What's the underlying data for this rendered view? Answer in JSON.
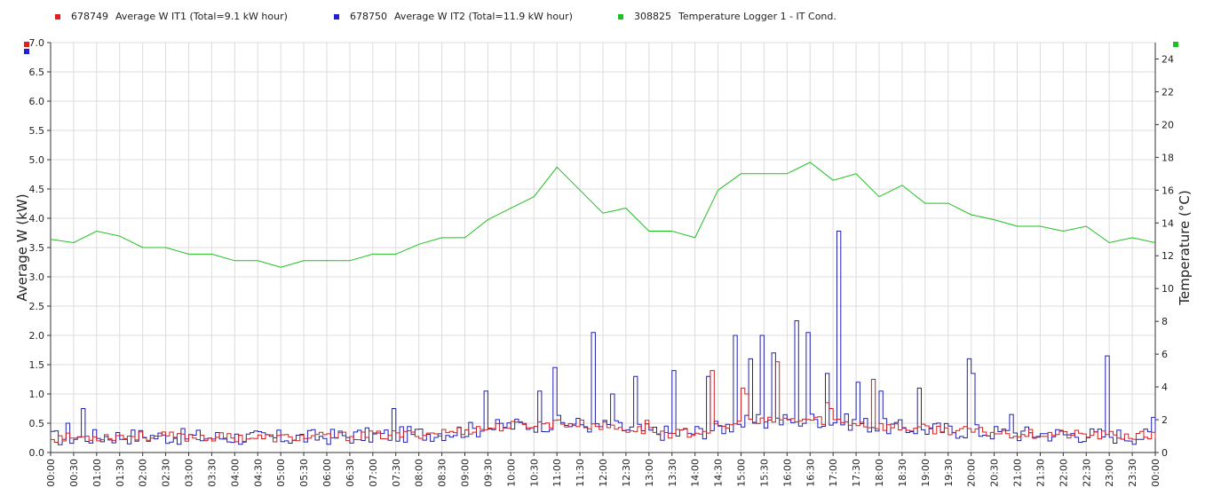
{
  "legend": [
    {
      "id": "678749",
      "label": "Average W IT1 (Total=9.1 kW hour)",
      "color": "#e02020"
    },
    {
      "id": "678750",
      "label": "Average W IT2 (Total=11.9 kW hour)",
      "color": "#2020d0"
    },
    {
      "id": "308825",
      "label": "Temperature Logger 1 - IT Cond.",
      "color": "#20c020"
    }
  ],
  "chart_data": {
    "type": "line",
    "ylabel": "Average W (kW)",
    "y2label": "Temperature (°C)",
    "ylim": [
      0,
      7.0
    ],
    "y2lim": [
      0,
      25
    ],
    "grid": true,
    "legend_position": "top",
    "x_ticks": [
      "00:00",
      "00:30",
      "01:00",
      "01:30",
      "02:00",
      "02:30",
      "03:00",
      "03:30",
      "04:00",
      "04:30",
      "05:00",
      "05:30",
      "06:00",
      "06:30",
      "07:00",
      "07:30",
      "08:00",
      "08:30",
      "09:00",
      "09:30",
      "10:00",
      "10:30",
      "11:00",
      "11:30",
      "12:00",
      "12:30",
      "13:00",
      "13:30",
      "14:00",
      "14:30",
      "15:00",
      "15:30",
      "16:00",
      "16:30",
      "17:00",
      "17:30",
      "18:00",
      "18:30",
      "19:00",
      "19:30",
      "20:00",
      "20:30",
      "21:00",
      "21:30",
      "22:00",
      "22:30",
      "23:00",
      "23:30",
      "00:00"
    ],
    "y_ticks": [
      "0.0",
      "0.5",
      "1.0",
      "1.5",
      "2.0",
      "2.5",
      "3.0",
      "3.5",
      "4.0",
      "4.5",
      "5.0",
      "5.5",
      "6.0",
      "6.5",
      "7.0"
    ],
    "y2_ticks": [
      "0",
      "2",
      "4",
      "6",
      "8",
      "10",
      "12",
      "14",
      "16",
      "18",
      "20",
      "22",
      "24"
    ],
    "series": [
      {
        "name": "Temperature Logger 1 - IT Cond.",
        "axis": "right",
        "color": "#20c020",
        "x_hours": [
          0,
          0.5,
          1,
          1.5,
          2,
          2.5,
          3,
          3.5,
          4,
          4.5,
          5,
          5.5,
          6,
          6.5,
          7,
          7.5,
          8,
          8.5,
          9,
          9.5,
          10,
          10.5,
          11,
          11.5,
          12,
          12.5,
          13,
          13.5,
          14,
          14.5,
          15,
          15.5,
          16,
          16.5,
          17,
          17.5,
          18,
          18.5,
          19,
          19.5,
          20,
          20.5,
          21,
          21.5,
          22,
          22.5,
          23,
          23.5,
          24
        ],
        "values": [
          13,
          12.8,
          13.5,
          13.2,
          12.5,
          12.5,
          12.1,
          12.1,
          11.7,
          11.7,
          11.3,
          11.7,
          11.7,
          11.7,
          12.1,
          12.1,
          12.7,
          13.1,
          13.1,
          14.2,
          14.9,
          15.6,
          17.4,
          16,
          14.6,
          14.9,
          13.5,
          13.5,
          13.1,
          16,
          17,
          17,
          17,
          17.7,
          16.6,
          17,
          15.6,
          16.3,
          15.2,
          15.2,
          14.5,
          14.2,
          13.8,
          13.8,
          13.5,
          13.8,
          12.8,
          13.1,
          12.8
        ]
      },
      {
        "name": "Average W IT1",
        "axis": "left",
        "color": "#d02020",
        "note": "step series, 5-minute samples (289 values)",
        "base_profile": [
          0.25,
          0.26,
          0.27,
          0.28,
          0.28,
          0.27,
          0.27,
          0.26,
          0.26,
          0.25,
          0.25,
          0.26,
          0.27,
          0.28,
          0.29,
          0.3,
          0.32,
          0.34,
          0.38,
          0.42,
          0.46,
          0.48,
          0.5,
          0.48,
          0.45,
          0.4,
          0.36,
          0.32,
          0.35,
          0.42,
          0.5,
          0.52,
          0.55,
          0.56,
          0.55,
          0.5,
          0.45,
          0.42,
          0.4,
          0.38,
          0.36,
          0.34,
          0.32,
          0.32,
          0.31,
          0.3,
          0.29,
          0.28,
          0.28
        ],
        "spikes": [
          [
            172,
            1.4
          ],
          [
            180,
            1.1
          ],
          [
            189,
            1.55
          ],
          [
            202,
            0.85
          ],
          [
            203,
            0.75
          ],
          [
            214,
            1.25
          ],
          [
            181,
            1.0
          ],
          [
            155,
            0.55
          ],
          [
            131,
            0.55
          ]
        ]
      },
      {
        "name": "Average W IT2",
        "axis": "left",
        "color": "#2020b0",
        "note": "step series, 5-minute samples (289 values)",
        "base_profile": [
          0.25,
          0.26,
          0.27,
          0.28,
          0.28,
          0.27,
          0.27,
          0.26,
          0.26,
          0.25,
          0.25,
          0.26,
          0.27,
          0.28,
          0.29,
          0.3,
          0.32,
          0.34,
          0.38,
          0.42,
          0.46,
          0.48,
          0.5,
          0.48,
          0.45,
          0.4,
          0.36,
          0.32,
          0.35,
          0.42,
          0.5,
          0.52,
          0.55,
          0.56,
          0.55,
          0.5,
          0.45,
          0.42,
          0.4,
          0.38,
          0.36,
          0.34,
          0.32,
          0.32,
          0.31,
          0.3,
          0.29,
          0.28,
          0.28
        ],
        "spikes": [
          [
            8,
            0.75
          ],
          [
            4,
            0.5
          ],
          [
            89,
            0.75
          ],
          [
            113,
            1.05
          ],
          [
            127,
            1.05
          ],
          [
            131,
            1.45
          ],
          [
            141,
            2.05
          ],
          [
            146,
            1.0
          ],
          [
            152,
            1.3
          ],
          [
            162,
            1.4
          ],
          [
            171,
            1.3
          ],
          [
            178,
            2.0
          ],
          [
            182,
            1.6
          ],
          [
            185,
            2.0
          ],
          [
            188,
            1.7
          ],
          [
            194,
            2.25
          ],
          [
            197,
            2.05
          ],
          [
            202,
            1.35
          ],
          [
            205,
            3.78
          ],
          [
            210,
            1.2
          ],
          [
            216,
            1.05
          ],
          [
            226,
            1.1
          ],
          [
            239,
            1.6
          ],
          [
            240,
            1.35
          ],
          [
            250,
            0.65
          ],
          [
            275,
            1.65
          ],
          [
            287,
            0.6
          ]
        ]
      }
    ]
  }
}
